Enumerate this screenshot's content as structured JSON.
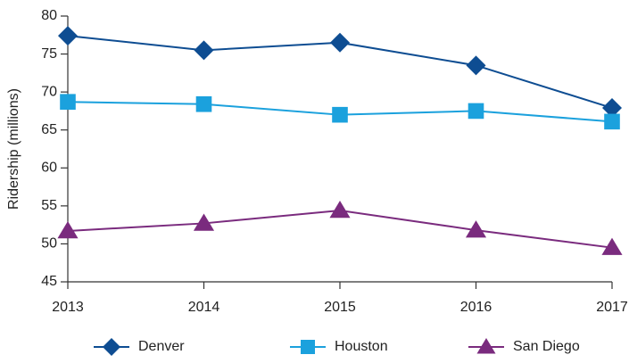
{
  "chart_data": {
    "type": "line",
    "y_label": "Ridership (millions)",
    "categories": [
      "2013",
      "2014",
      "2015",
      "2016",
      "2017"
    ],
    "series": [
      {
        "name": "Denver",
        "color": "#0e4d92",
        "marker": "diamond",
        "values": [
          77.4,
          75.5,
          76.5,
          73.5,
          67.9
        ]
      },
      {
        "name": "Houston",
        "color": "#1ba1dd",
        "marker": "square",
        "values": [
          68.7,
          68.4,
          67.0,
          67.5,
          66.1
        ]
      },
      {
        "name": "San Diego",
        "color": "#7a2b7e",
        "marker": "triangle",
        "values": [
          51.7,
          52.7,
          54.4,
          51.8,
          49.5
        ]
      }
    ],
    "ylim": [
      45,
      80
    ],
    "yticks": [
      45,
      50,
      55,
      60,
      65,
      70,
      75,
      80
    ],
    "grid": false,
    "legend": "bottom"
  }
}
